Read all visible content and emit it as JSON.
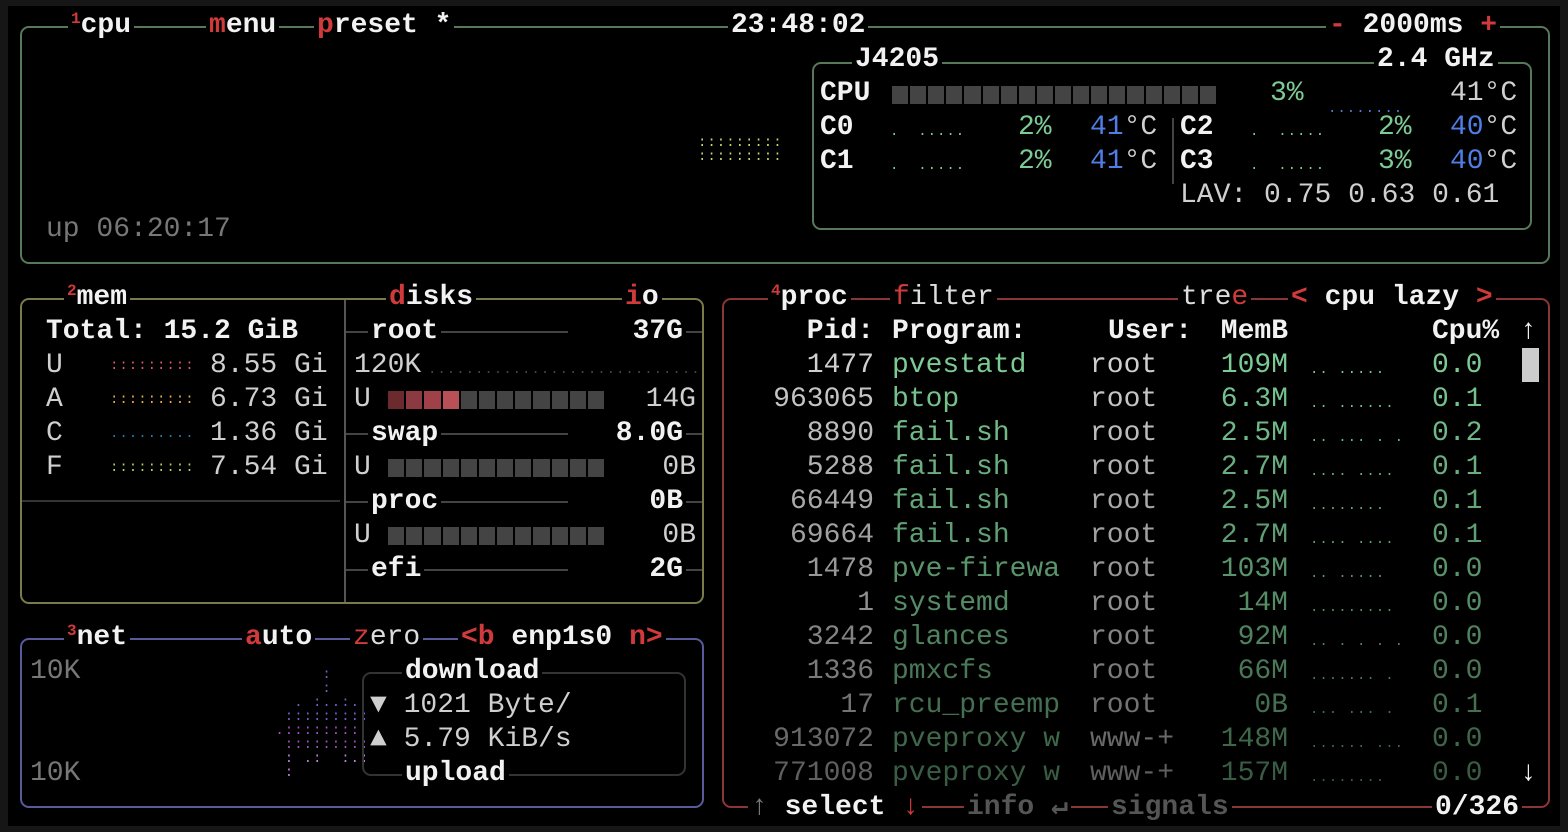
{
  "cpu_box": {
    "num": "1",
    "title": "cpu",
    "menu_hot": "m",
    "menu_rest": "enu",
    "preset_hot": "p",
    "preset_rest": "reset *",
    "clock": "23:48:02",
    "minus": "-",
    "interval": "2000ms",
    "plus": "+",
    "uptime": "up 06:20:17",
    "model": "J4205",
    "freq": "2.4 GHz",
    "total_label": "CPU",
    "total_pct": "3%",
    "total_temp": "41°C",
    "total_pct_value": 3,
    "cores": [
      {
        "name": "C0",
        "pct": "2%",
        "temp_num": "41",
        "temp_unit": "°C"
      },
      {
        "name": "C1",
        "pct": "2%",
        "temp_num": "41",
        "temp_unit": "°C"
      },
      {
        "name": "C2",
        "pct": "2%",
        "temp_num": "40",
        "temp_unit": "°C"
      },
      {
        "name": "C3",
        "pct": "3%",
        "temp_num": "40",
        "temp_unit": "°C"
      }
    ],
    "lav_label": "LAV:",
    "lav": [
      "0.75",
      "0.63",
      "0.61"
    ]
  },
  "mem_box": {
    "num": "2",
    "title": "mem",
    "total": "Total: 15.2 GiB",
    "rows": [
      {
        "k": "U",
        "v": "8.55 Gi",
        "color": "#e05a64"
      },
      {
        "k": "A",
        "v": "6.73 Gi",
        "color": "#e8b040"
      },
      {
        "k": "C",
        "v": "1.36 Gi",
        "color": "#2a78a8"
      },
      {
        "k": "F",
        "v": "7.54 Gi",
        "color": "#a8d860"
      }
    ]
  },
  "disks_box": {
    "title_hot": "d",
    "title_rest": "isks",
    "io_hot": "i",
    "io_rest": "o",
    "disks": [
      {
        "name": "root",
        "size": "37G",
        "extra": "120K",
        "used_label": "U",
        "used": "14G",
        "used_pct": 30
      },
      {
        "name": "swap",
        "size": "8.0G",
        "used_label": "U",
        "used": "0B",
        "used_pct": 0
      },
      {
        "name": "proc",
        "size": "0B",
        "used_label": "U",
        "used": "0B",
        "used_pct": 0
      },
      {
        "name": "efi",
        "size": "2G"
      }
    ]
  },
  "net_box": {
    "num": "3",
    "title": "net",
    "auto_hot": "a",
    "auto_rest": "uto",
    "zero_hot": "z",
    "zero_rest": "ero",
    "prev": "<b",
    "iface": "enp1s0",
    "next": "n>",
    "scale_top": "10K",
    "scale_bottom": "10K",
    "download_label": "download",
    "download": "1021 Byte/",
    "upload": "5.79 KiB/s",
    "upload_label": "upload",
    "down_icon": "▼",
    "up_icon": "▲"
  },
  "proc_box": {
    "num": "4",
    "title": "proc",
    "filter_hot": "f",
    "filter_rest": "ilter",
    "tree_rest": "tre",
    "tree_hot": "e",
    "sort_prev": "<",
    "sort": "cpu lazy",
    "sort_next": ">",
    "headers": {
      "pid": "Pid:",
      "program": "Program:",
      "user": "User:",
      "mem": "MemB",
      "cpu": "Cpu%"
    },
    "rows": [
      {
        "pid": "1477",
        "program": "pvestatd",
        "user": "root",
        "mem": "109M",
        "cpu": "0.0"
      },
      {
        "pid": "963065",
        "program": "btop",
        "user": "root",
        "mem": "6.3M",
        "cpu": "0.1"
      },
      {
        "pid": "8890",
        "program": "fail.sh",
        "user": "root",
        "mem": "2.5M",
        "cpu": "0.2"
      },
      {
        "pid": "5288",
        "program": "fail.sh",
        "user": "root",
        "mem": "2.7M",
        "cpu": "0.1"
      },
      {
        "pid": "66449",
        "program": "fail.sh",
        "user": "root",
        "mem": "2.5M",
        "cpu": "0.1"
      },
      {
        "pid": "69664",
        "program": "fail.sh",
        "user": "root",
        "mem": "2.7M",
        "cpu": "0.1"
      },
      {
        "pid": "1478",
        "program": "pve-firewa",
        "user": "root",
        "mem": "103M",
        "cpu": "0.0"
      },
      {
        "pid": "1",
        "program": "systemd",
        "user": "root",
        "mem": "14M",
        "cpu": "0.0"
      },
      {
        "pid": "3242",
        "program": "glances",
        "user": "root",
        "mem": "92M",
        "cpu": "0.0"
      },
      {
        "pid": "1336",
        "program": "pmxcfs",
        "user": "root",
        "mem": "66M",
        "cpu": "0.0"
      },
      {
        "pid": "17",
        "program": "rcu_preemp",
        "user": "root",
        "mem": "0B",
        "cpu": "0.1"
      },
      {
        "pid": "913072",
        "program": "pveproxy w",
        "user": "www-+",
        "mem": "148M",
        "cpu": "0.0"
      },
      {
        "pid": "771008",
        "program": "pveproxy w",
        "user": "www-+",
        "mem": "157M",
        "cpu": "0.0"
      }
    ],
    "footer": {
      "up": "↑",
      "select": "select",
      "down": "↓",
      "info": "info",
      "enter": "↵",
      "signals": "signals",
      "count": "0/326"
    },
    "scroll_up": "↑",
    "scroll_down": "↓"
  }
}
